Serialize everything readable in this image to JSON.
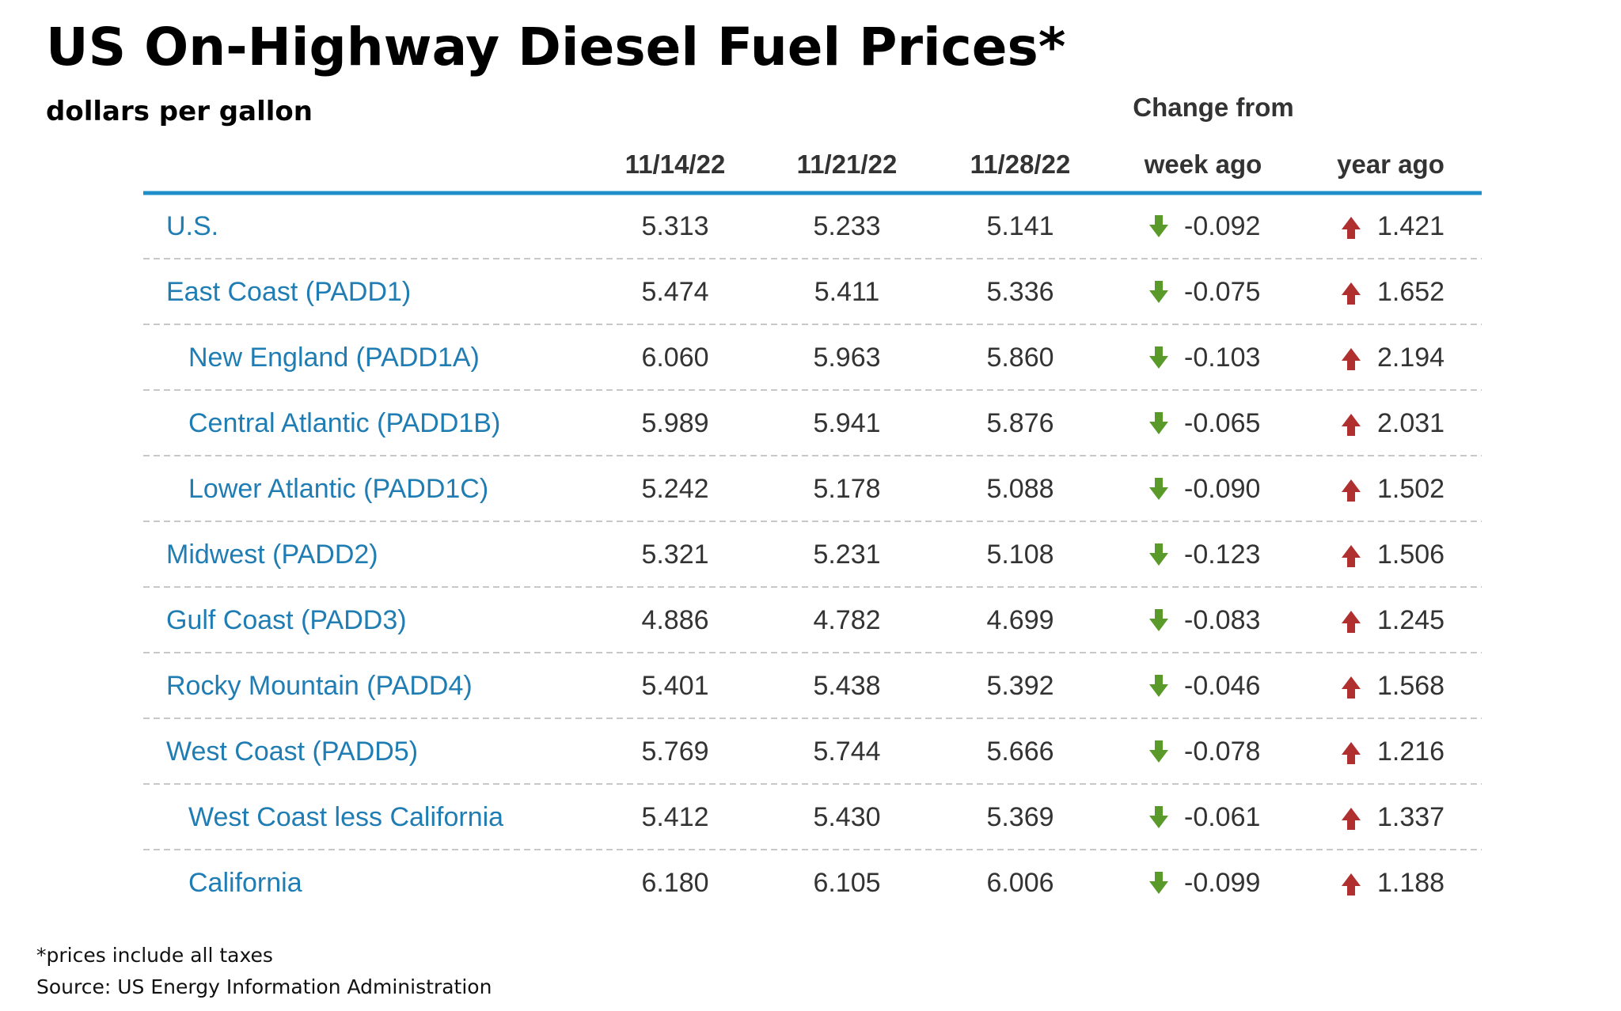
{
  "header": {
    "title": "US On-Highway Diesel Fuel Prices*",
    "subtitle": "dollars per gallon"
  },
  "table": {
    "group_header": "Change from",
    "columns": [
      "11/14/22",
      "11/21/22",
      "11/28/22",
      "week ago",
      "year ago"
    ],
    "rows": [
      {
        "label": "U.S.",
        "indent": 0,
        "values": [
          "5.313",
          "5.233",
          "5.141",
          "-0.092",
          "1.421"
        ]
      },
      {
        "label": "East Coast (PADD1)",
        "indent": 0,
        "values": [
          "5.474",
          "5.411",
          "5.336",
          "-0.075",
          "1.652"
        ]
      },
      {
        "label": "New England (PADD1A)",
        "indent": 1,
        "values": [
          "6.060",
          "5.963",
          "5.860",
          "-0.103",
          "2.194"
        ]
      },
      {
        "label": "Central Atlantic (PADD1B)",
        "indent": 1,
        "values": [
          "5.989",
          "5.941",
          "5.876",
          "-0.065",
          "2.031"
        ]
      },
      {
        "label": "Lower Atlantic (PADD1C)",
        "indent": 1,
        "values": [
          "5.242",
          "5.178",
          "5.088",
          "-0.090",
          "1.502"
        ]
      },
      {
        "label": "Midwest (PADD2)",
        "indent": 0,
        "values": [
          "5.321",
          "5.231",
          "5.108",
          "-0.123",
          "1.506"
        ]
      },
      {
        "label": "Gulf Coast (PADD3)",
        "indent": 0,
        "values": [
          "4.886",
          "4.782",
          "4.699",
          "-0.083",
          "1.245"
        ]
      },
      {
        "label": "Rocky Mountain (PADD4)",
        "indent": 0,
        "values": [
          "5.401",
          "5.438",
          "5.392",
          "-0.046",
          "1.568"
        ]
      },
      {
        "label": "West Coast (PADD5)",
        "indent": 0,
        "values": [
          "5.769",
          "5.744",
          "5.666",
          "-0.078",
          "1.216"
        ]
      },
      {
        "label": "West Coast less California",
        "indent": 1,
        "values": [
          "5.412",
          "5.430",
          "5.369",
          "-0.061",
          "1.337"
        ]
      },
      {
        "label": "California",
        "indent": 1,
        "values": [
          "6.180",
          "6.105",
          "6.006",
          "-0.099",
          "1.188"
        ]
      }
    ]
  },
  "notes": [
    "*prices include all taxes",
    "Source: US Energy Information Administration"
  ]
}
